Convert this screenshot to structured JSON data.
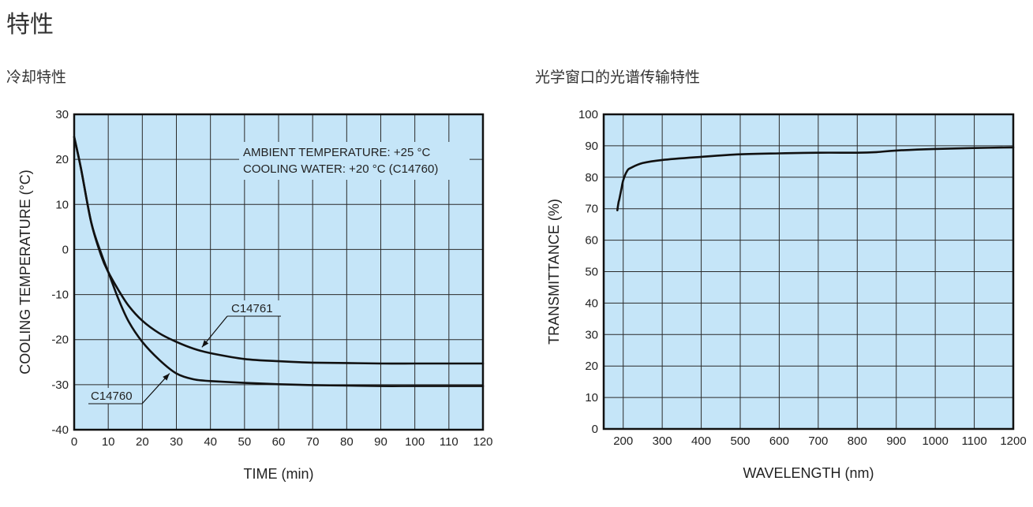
{
  "page": {
    "title": "特性"
  },
  "sections": {
    "cooling": {
      "title": "冷却特性"
    },
    "spectral": {
      "title": "光学窗口的光谱传输特性"
    }
  },
  "colors": {
    "plot_bg": "#c5e5f8",
    "grid": "#2a2a2a",
    "curve": "#111111"
  },
  "chart_data": [
    {
      "id": "cooling",
      "type": "line",
      "xlabel": "TIME (min)",
      "ylabel": "COOLING TEMPERATURE (°C)",
      "xlim": [
        0,
        120
      ],
      "ylim": [
        -40,
        30
      ],
      "xticks": [
        0,
        10,
        20,
        30,
        40,
        50,
        60,
        70,
        80,
        90,
        100,
        110,
        120
      ],
      "yticks": [
        30,
        20,
        10,
        0,
        -10,
        -20,
        -30,
        -40
      ],
      "grid": true,
      "annotations": [
        "AMBIENT TEMPERATURE: +25 °C",
        "COOLING WATER: +20 °C (C14760)"
      ],
      "series": [
        {
          "name": "C14761",
          "x": [
            0,
            2,
            5,
            8,
            10,
            13,
            16,
            20,
            25,
            30,
            35,
            40,
            50,
            60,
            70,
            80,
            90,
            100,
            110,
            120
          ],
          "y": [
            25,
            18,
            6,
            -1.5,
            -5,
            -9,
            -12.5,
            -15.8,
            -18.6,
            -20.5,
            -22,
            -23,
            -24.3,
            -24.8,
            -25.1,
            -25.2,
            -25.3,
            -25.3,
            -25.3,
            -25.3
          ]
        },
        {
          "name": "C14760",
          "x": [
            0,
            2,
            5,
            8,
            10,
            13,
            16,
            20,
            25,
            30,
            35,
            40,
            50,
            60,
            70,
            80,
            90,
            100,
            110,
            120
          ],
          "y": [
            25,
            18,
            6,
            -1,
            -5,
            -11,
            -16,
            -20.5,
            -24.5,
            -27.5,
            -28.8,
            -29.2,
            -29.6,
            -29.9,
            -30.1,
            -30.2,
            -30.3,
            -30.3,
            -30.3,
            -30.3
          ]
        }
      ]
    },
    {
      "id": "spectral",
      "type": "line",
      "xlabel": "WAVELENGTH (nm)",
      "ylabel": "TRANSMITTANCE (%)",
      "xlim": [
        150,
        1200
      ],
      "ylim": [
        0,
        100
      ],
      "xticks": [
        200,
        300,
        400,
        500,
        600,
        700,
        800,
        900,
        1000,
        1100,
        1200
      ],
      "yticks": [
        0,
        10,
        20,
        30,
        40,
        50,
        60,
        70,
        80,
        90,
        100
      ],
      "grid": true,
      "series": [
        {
          "name": "",
          "x": [
            185,
            188,
            190,
            195,
            200,
            210,
            220,
            250,
            300,
            400,
            500,
            600,
            700,
            800,
            850,
            900,
            1000,
            1100,
            1200
          ],
          "y": [
            69.5,
            72,
            73,
            76,
            79,
            82,
            83,
            84.5,
            85.5,
            86.5,
            87.3,
            87.6,
            87.8,
            87.8,
            88,
            88.5,
            89,
            89.3,
            89.5
          ]
        }
      ]
    }
  ]
}
